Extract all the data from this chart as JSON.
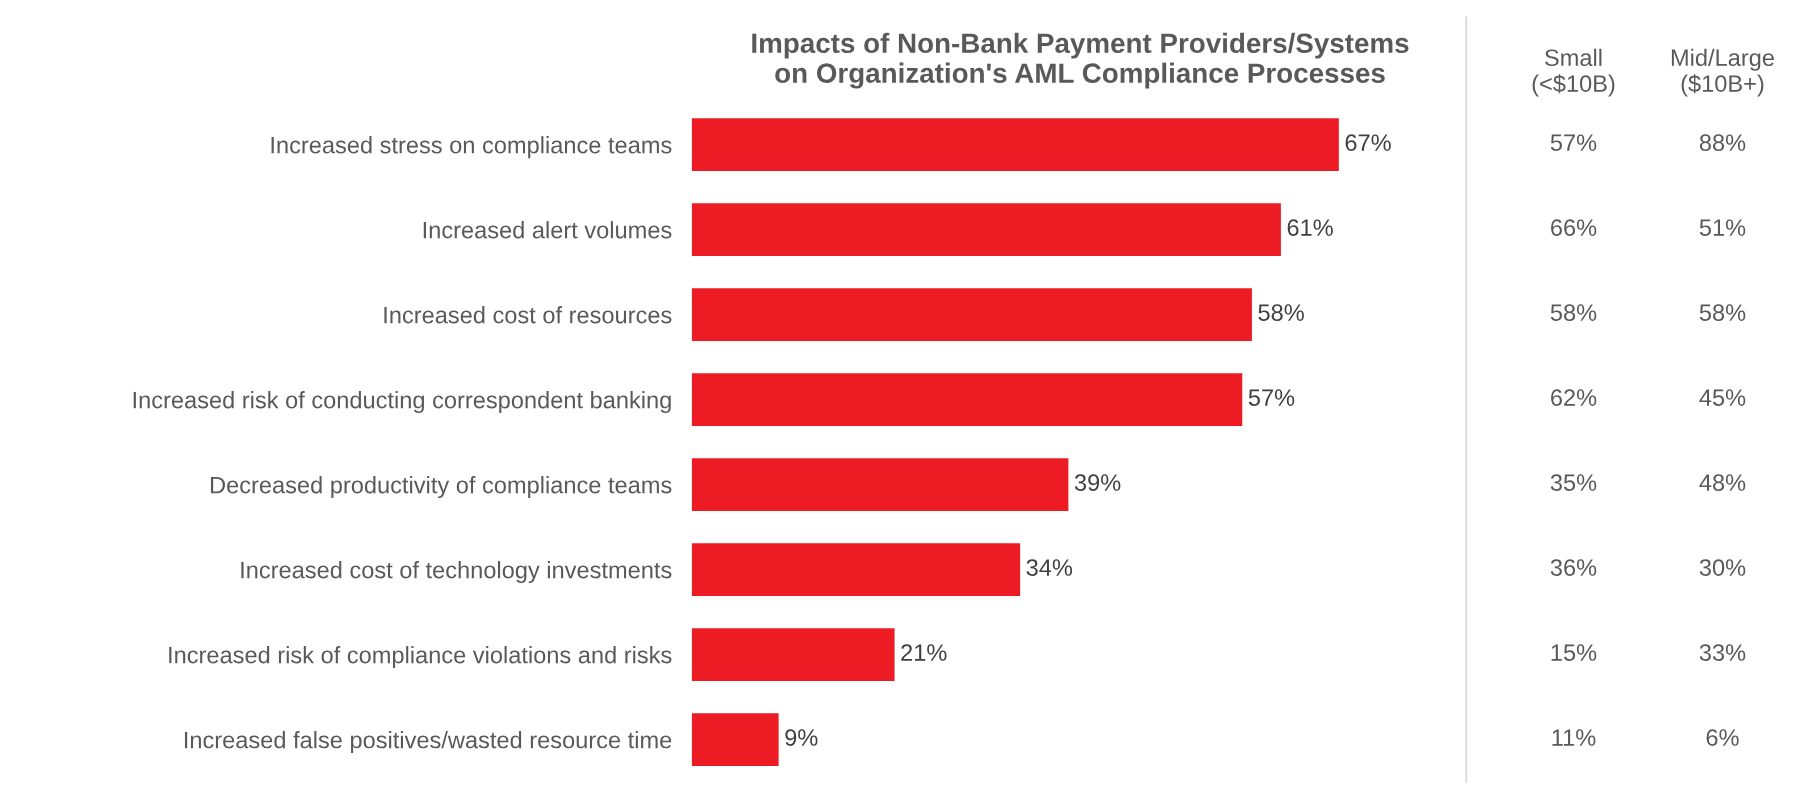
{
  "chart_data": [
    {
      "type": "bar",
      "orientation": "horizontal",
      "title": "Impacts of Non-Bank Payment Providers/Systems\non Organization's AML Compliance Processes",
      "categories": [
        "Increased stress on compliance teams",
        "Increased alert volumes",
        "Increased cost of resources",
        "Increased risk of conducting correspondent banking",
        "Decreased productivity of compliance teams",
        "Increased cost of technology investments",
        "Increased risk of compliance violations and risks",
        "Increased false positives/wasted resource time"
      ],
      "values": [
        67,
        61,
        58,
        57,
        39,
        34,
        21,
        9
      ],
      "color": "#ed1c24",
      "value_labels": [
        "67%",
        "61%",
        "58%",
        "57%",
        "39%",
        "34%",
        "21%",
        "9%"
      ],
      "tick_labels": "y"
    },
    {
      "type": "heatmap",
      "categories": [
        "Small\n(<$10B)",
        "Mid/Large\n($10B+)"
      ],
      "y_categories": [
        null,
        null,
        null,
        null,
        null,
        null,
        null,
        null
      ],
      "cells": [
        [
          57,
          88
        ],
        [
          66,
          51
        ],
        [
          58,
          58
        ],
        [
          62,
          45
        ],
        [
          35,
          48
        ],
        [
          36,
          30
        ],
        [
          15,
          33
        ],
        [
          11,
          6
        ]
      ],
      "cell_labels": [
        [
          "57%",
          "88%"
        ],
        [
          "66%",
          "51%"
        ],
        [
          "58%",
          "58%"
        ],
        [
          "62%",
          "45%"
        ],
        [
          "35%",
          "48%"
        ],
        [
          "36%",
          "30%"
        ],
        [
          "15%",
          "33%"
        ],
        [
          "11%",
          "6%"
        ]
      ]
    }
  ]
}
